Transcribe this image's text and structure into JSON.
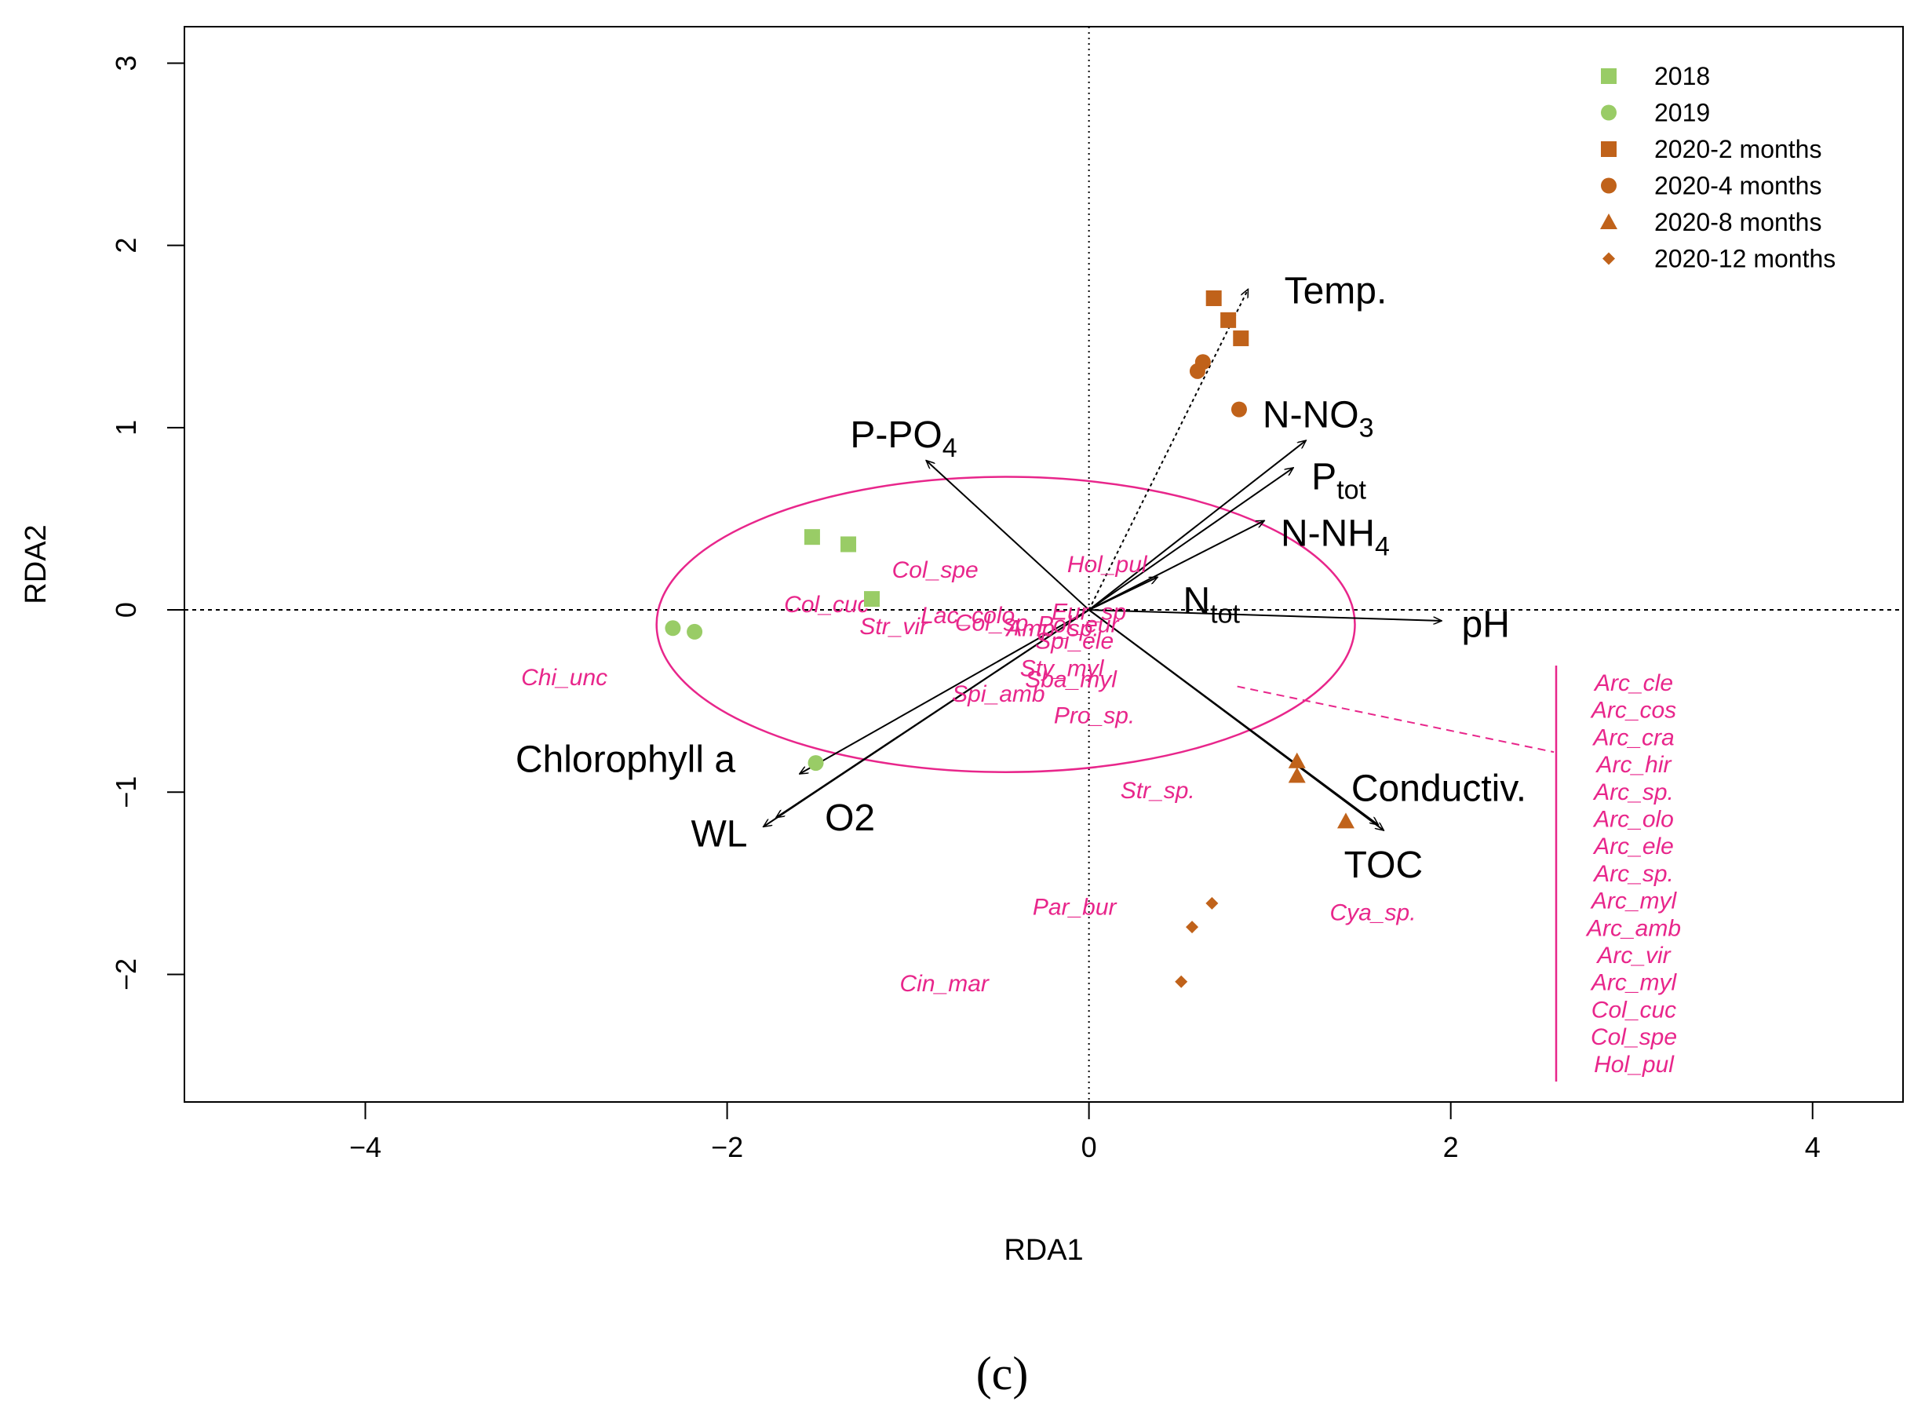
{
  "chart_data": {
    "type": "scatter",
    "subtype": "RDA triplot",
    "xlabel": "RDA1",
    "ylabel": "RDA2",
    "xlim": [
      -5.0,
      4.5
    ],
    "ylim": [
      -2.7,
      3.2
    ],
    "xticks": [
      -4,
      -2,
      0,
      2,
      4
    ],
    "yticks": [
      -2,
      -1,
      0,
      1,
      2,
      3
    ],
    "xtick_labels": [
      "−4",
      "−2",
      "0",
      "2",
      "4"
    ],
    "ytick_labels": [
      "−2",
      "−1",
      "0",
      "1",
      "2",
      "3"
    ],
    "zero_lines": true,
    "panel_label": "(c)",
    "colors": {
      "green": "#99cc66",
      "brown": "#c0621a",
      "magenta": "#e8268b",
      "black": "#000000"
    },
    "legend": {
      "position": "top-right",
      "entries": [
        {
          "label": "2018",
          "shape": "square",
          "color": "#99cc66"
        },
        {
          "label": "2019",
          "shape": "circle",
          "color": "#99cc66"
        },
        {
          "label": "2020-2 months",
          "shape": "square",
          "color": "#c0621a"
        },
        {
          "label": "2020-4 months",
          "shape": "circle",
          "color": "#c0621a"
        },
        {
          "label": "2020-8 months",
          "shape": "triangle",
          "color": "#c0621a"
        },
        {
          "label": "2020-12 months",
          "shape": "diamond",
          "color": "#c0621a"
        }
      ]
    },
    "sites": [
      {
        "group": "2018",
        "shape": "square",
        "color": "#99cc66",
        "x": -1.53,
        "y": 0.4
      },
      {
        "group": "2018",
        "shape": "square",
        "color": "#99cc66",
        "x": -1.33,
        "y": 0.36
      },
      {
        "group": "2018",
        "shape": "square",
        "color": "#99cc66",
        "x": -1.2,
        "y": 0.06
      },
      {
        "group": "2019",
        "shape": "circle",
        "color": "#99cc66",
        "x": -2.3,
        "y": -0.1
      },
      {
        "group": "2019",
        "shape": "circle",
        "color": "#99cc66",
        "x": -2.18,
        "y": -0.12
      },
      {
        "group": "2019",
        "shape": "circle",
        "color": "#99cc66",
        "x": -1.51,
        "y": -0.84
      },
      {
        "group": "2020-2 months",
        "shape": "square",
        "color": "#c0621a",
        "x": 0.69,
        "y": 1.71
      },
      {
        "group": "2020-2 months",
        "shape": "square",
        "color": "#c0621a",
        "x": 0.77,
        "y": 1.59
      },
      {
        "group": "2020-2 months",
        "shape": "square",
        "color": "#c0621a",
        "x": 0.84,
        "y": 1.49
      },
      {
        "group": "2020-4 months",
        "shape": "circle",
        "color": "#c0621a",
        "x": 0.63,
        "y": 1.36
      },
      {
        "group": "2020-4 months",
        "shape": "circle",
        "color": "#c0621a",
        "x": 0.6,
        "y": 1.31
      },
      {
        "group": "2020-4 months",
        "shape": "circle",
        "color": "#c0621a",
        "x": 0.83,
        "y": 1.1
      },
      {
        "group": "2020-8 months",
        "shape": "triangle",
        "color": "#c0621a",
        "x": 1.15,
        "y": -0.83
      },
      {
        "group": "2020-8 months",
        "shape": "triangle",
        "color": "#c0621a",
        "x": 1.15,
        "y": -0.91
      },
      {
        "group": "2020-8 months",
        "shape": "triangle",
        "color": "#c0621a",
        "x": 1.42,
        "y": -1.16
      },
      {
        "group": "2020-12 months",
        "shape": "diamond",
        "color": "#c0621a",
        "x": 0.68,
        "y": -1.61
      },
      {
        "group": "2020-12 months",
        "shape": "diamond",
        "color": "#c0621a",
        "x": 0.57,
        "y": -1.74
      },
      {
        "group": "2020-12 months",
        "shape": "diamond",
        "color": "#c0621a",
        "x": 0.51,
        "y": -2.04
      }
    ],
    "env_vectors": [
      {
        "name": "Temp.",
        "x": 0.88,
        "y": 1.76,
        "dotted": true
      },
      {
        "name": "P-PO₄",
        "x": -0.9,
        "y": 0.82,
        "dotted": false
      },
      {
        "name": "N-NO₃",
        "x": 1.2,
        "y": 0.93,
        "dotted": false
      },
      {
        "name": "P_tot",
        "x": 1.13,
        "y": 0.78,
        "dotted": false
      },
      {
        "name": "N-NH₄",
        "x": 0.97,
        "y": 0.49,
        "dotted": false
      },
      {
        "name": "N_tot",
        "x": 0.38,
        "y": 0.18,
        "dotted": false
      },
      {
        "name": "pH",
        "x": 1.95,
        "y": -0.06,
        "dotted": false
      },
      {
        "name": "Conductiv.",
        "x": 1.6,
        "y": -1.18,
        "dotted": false
      },
      {
        "name": "TOC",
        "x": 1.63,
        "y": -1.21,
        "dotted": false
      },
      {
        "name": "Chlorophyll a",
        "x": -1.6,
        "y": -0.9,
        "dotted": false
      },
      {
        "name": "WL",
        "x": -1.8,
        "y": -1.19,
        "dotted": false
      },
      {
        "name": "O2",
        "x": -1.73,
        "y": -1.14,
        "dotted": false
      }
    ],
    "env_labels": [
      {
        "key": "temp",
        "text": "Temp.",
        "x": 1.08,
        "y": 1.75
      },
      {
        "key": "ppo4",
        "base": "P-PO",
        "sub": "4",
        "x": -1.32,
        "y": 0.96
      },
      {
        "key": "nno3",
        "base": "N-NO",
        "sub": "3",
        "x": 0.96,
        "y": 1.07
      },
      {
        "key": "ptot",
        "base": "P",
        "sub": "tot",
        "x": 1.23,
        "y": 0.73
      },
      {
        "key": "nnh4",
        "base": "N-NH",
        "sub": "4",
        "x": 1.06,
        "y": 0.42
      },
      {
        "key": "ntot",
        "base": "N",
        "sub": "tot",
        "x": 0.52,
        "y": 0.05
      },
      {
        "key": "ph",
        "text": "pH",
        "x": 2.06,
        "y": -0.08
      },
      {
        "key": "cond",
        "text": "Conductiv.",
        "x": 1.45,
        "y": -0.98
      },
      {
        "key": "toc",
        "text": "TOC",
        "x": 1.41,
        "y": -1.4
      },
      {
        "key": "chl",
        "text": "Chlorophyll a",
        "x": -3.17,
        "y": -0.82
      },
      {
        "key": "wl",
        "text": "WL",
        "x": -2.2,
        "y": -1.23
      },
      {
        "key": "o2",
        "text": "O2",
        "x": -1.46,
        "y": -1.14
      }
    ],
    "species": [
      {
        "name": "Col_spe",
        "x": -0.85,
        "y": 0.22
      },
      {
        "name": "Hol_pul",
        "x": 0.1,
        "y": 0.25
      },
      {
        "name": "Col_cuc",
        "x": -1.45,
        "y": 0.03
      },
      {
        "name": "Lac_colo",
        "x": -0.67,
        "y": -0.03
      },
      {
        "name": "Eur_sp",
        "x": 0.0,
        "y": -0.01
      },
      {
        "name": "Str_vir",
        "x": -1.08,
        "y": -0.09
      },
      {
        "name": "Col_sp.",
        "x": -0.52,
        "y": -0.07
      },
      {
        "name": "Amp_sp.",
        "x": -0.2,
        "y": -0.1
      },
      {
        "name": "Pol_eur",
        "x": -0.06,
        "y": -0.08
      },
      {
        "name": "Spi_ele",
        "x": -0.08,
        "y": -0.17
      },
      {
        "name": "Sty_myl",
        "x": -0.15,
        "y": -0.32
      },
      {
        "name": "Sba_myl",
        "x": -0.1,
        "y": -0.38
      },
      {
        "name": "Spi_amb",
        "x": -0.5,
        "y": -0.46
      },
      {
        "name": "Pro_sp.",
        "x": 0.03,
        "y": -0.58
      },
      {
        "name": "Chi_unc",
        "x": -2.9,
        "y": -0.37
      },
      {
        "name": "Str_sp.",
        "x": 0.38,
        "y": -0.99
      },
      {
        "name": "Par_bur",
        "x": -0.08,
        "y": -1.63
      },
      {
        "name": "Cya_sp.",
        "x": 1.57,
        "y": -1.66
      },
      {
        "name": "Cin_mar",
        "x": -0.8,
        "y": -2.05
      }
    ],
    "ellipse": {
      "cx": -0.46,
      "cy": -0.08,
      "rx": 1.93,
      "ry": 0.81
    },
    "species_list": [
      "Arc_cle",
      "Arc_cos",
      "Arc_cra",
      "Arc_hir",
      "Arc_sp.",
      "Arc_olo",
      "Arc_ele",
      "Arc_sp.",
      "Arc_myl",
      "Arc_amb",
      "Arc_vir",
      "Arc_myl",
      "Col_cuc",
      "Col_spe",
      "Hol_pul"
    ]
  }
}
